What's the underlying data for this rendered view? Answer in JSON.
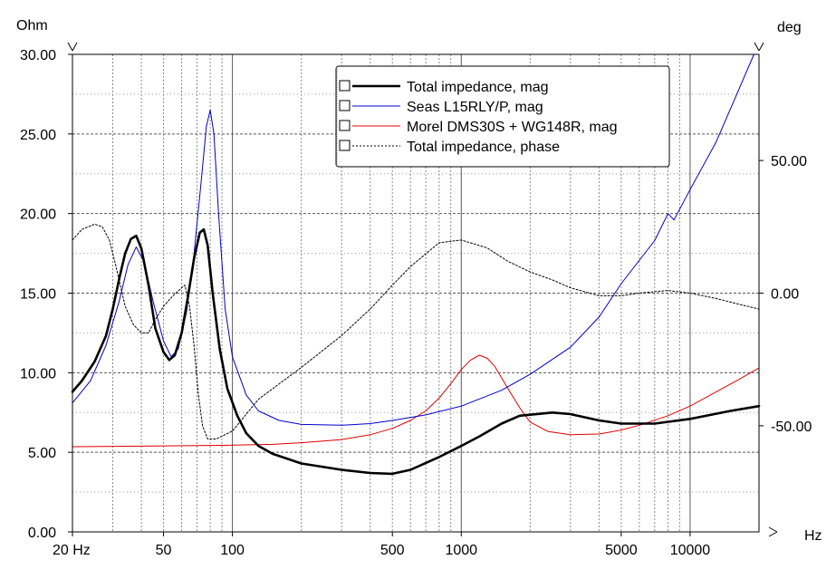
{
  "chart_data": {
    "type": "line",
    "y_left_unit": "Ohm",
    "y_right_unit": "deg",
    "x_unit": "Hz",
    "x_scale": "log",
    "xlim": [
      20,
      20000
    ],
    "ylim_left": [
      0,
      30
    ],
    "ylim_right": [
      -90,
      90
    ],
    "grid": true,
    "legend_position": "top-right",
    "x_ticks": [
      {
        "value": 20,
        "label": "20 Hz"
      },
      {
        "value": 50,
        "label": "50"
      },
      {
        "value": 100,
        "label": "100"
      },
      {
        "value": 500,
        "label": "500"
      },
      {
        "value": 1000,
        "label": "1000"
      },
      {
        "value": 5000,
        "label": "5000"
      },
      {
        "value": 10000,
        "label": "10000"
      }
    ],
    "y_left_ticks": [
      {
        "value": 0,
        "label": "0.00"
      },
      {
        "value": 5,
        "label": "5.00"
      },
      {
        "value": 10,
        "label": "10.00"
      },
      {
        "value": 15,
        "label": "15.00"
      },
      {
        "value": 20,
        "label": "20.00"
      },
      {
        "value": 25,
        "label": "25.00"
      },
      {
        "value": 30,
        "label": "30.00"
      }
    ],
    "y_right_ticks": [
      {
        "value": -50,
        "label": "-50.00"
      },
      {
        "value": 0,
        "label": "0.00"
      },
      {
        "value": 50,
        "label": "50.00"
      }
    ],
    "series": [
      {
        "name": "Total impedance, mag",
        "color": "#000000",
        "style": "solid-thick",
        "axis": "left",
        "points": [
          [
            20,
            8.8
          ],
          [
            22,
            9.5
          ],
          [
            25,
            10.7
          ],
          [
            28,
            12.3
          ],
          [
            30,
            14.0
          ],
          [
            32,
            15.9
          ],
          [
            34,
            17.5
          ],
          [
            36,
            18.4
          ],
          [
            38,
            18.6
          ],
          [
            40,
            17.8
          ],
          [
            43,
            15.5
          ],
          [
            46,
            12.8
          ],
          [
            50,
            11.3
          ],
          [
            53,
            10.8
          ],
          [
            56,
            11.1
          ],
          [
            60,
            12.5
          ],
          [
            64,
            14.8
          ],
          [
            68,
            17.2
          ],
          [
            72,
            18.8
          ],
          [
            75,
            19.0
          ],
          [
            78,
            18.0
          ],
          [
            82,
            15.0
          ],
          [
            88,
            11.5
          ],
          [
            95,
            9.0
          ],
          [
            105,
            7.3
          ],
          [
            115,
            6.2
          ],
          [
            130,
            5.4
          ],
          [
            150,
            4.9
          ],
          [
            200,
            4.3
          ],
          [
            300,
            3.9
          ],
          [
            400,
            3.7
          ],
          [
            500,
            3.65
          ],
          [
            600,
            3.9
          ],
          [
            800,
            4.7
          ],
          [
            1000,
            5.4
          ],
          [
            1200,
            6.0
          ],
          [
            1500,
            6.8
          ],
          [
            1800,
            7.3
          ],
          [
            2500,
            7.5
          ],
          [
            3000,
            7.4
          ],
          [
            4000,
            7.0
          ],
          [
            5000,
            6.8
          ],
          [
            7000,
            6.8
          ],
          [
            10000,
            7.1
          ],
          [
            15000,
            7.6
          ],
          [
            20000,
            7.9
          ]
        ]
      },
      {
        "name": "Seas L15RLY/P, mag",
        "color": "#0000cc",
        "style": "solid",
        "axis": "left",
        "points": [
          [
            20,
            8.1
          ],
          [
            24,
            9.5
          ],
          [
            28,
            11.7
          ],
          [
            32,
            14.5
          ],
          [
            35,
            16.8
          ],
          [
            38,
            17.9
          ],
          [
            41,
            17.0
          ],
          [
            45,
            14.5
          ],
          [
            50,
            12.0
          ],
          [
            54,
            11.0
          ],
          [
            58,
            11.5
          ],
          [
            63,
            13.8
          ],
          [
            68,
            17.5
          ],
          [
            73,
            22.0
          ],
          [
            77,
            25.5
          ],
          [
            80,
            26.5
          ],
          [
            83,
            25.0
          ],
          [
            87,
            20.0
          ],
          [
            93,
            14.0
          ],
          [
            100,
            11.0
          ],
          [
            115,
            8.6
          ],
          [
            130,
            7.6
          ],
          [
            160,
            7.0
          ],
          [
            200,
            6.75
          ],
          [
            300,
            6.7
          ],
          [
            400,
            6.8
          ],
          [
            500,
            7.0
          ],
          [
            700,
            7.35
          ],
          [
            1000,
            7.9
          ],
          [
            1500,
            8.9
          ],
          [
            2000,
            9.9
          ],
          [
            3000,
            11.6
          ],
          [
            4000,
            13.5
          ],
          [
            5000,
            15.6
          ],
          [
            7000,
            18.3
          ],
          [
            8000,
            20.0
          ],
          [
            8500,
            19.6
          ],
          [
            10000,
            21.5
          ],
          [
            13000,
            24.5
          ],
          [
            16000,
            27.5
          ],
          [
            19000,
            30.0
          ]
        ]
      },
      {
        "name": "Morel DMS30S + WG148R, mag",
        "color": "#e00000",
        "style": "solid",
        "axis": "left",
        "points": [
          [
            20,
            5.35
          ],
          [
            50,
            5.4
          ],
          [
            100,
            5.45
          ],
          [
            150,
            5.5
          ],
          [
            200,
            5.6
          ],
          [
            300,
            5.8
          ],
          [
            400,
            6.1
          ],
          [
            500,
            6.5
          ],
          [
            600,
            7.0
          ],
          [
            700,
            7.6
          ],
          [
            800,
            8.4
          ],
          [
            900,
            9.3
          ],
          [
            1000,
            10.2
          ],
          [
            1100,
            10.8
          ],
          [
            1200,
            11.1
          ],
          [
            1300,
            10.9
          ],
          [
            1400,
            10.4
          ],
          [
            1600,
            9.0
          ],
          [
            1800,
            7.8
          ],
          [
            2000,
            6.9
          ],
          [
            2400,
            6.3
          ],
          [
            3000,
            6.1
          ],
          [
            4000,
            6.15
          ],
          [
            5000,
            6.4
          ],
          [
            6000,
            6.7
          ],
          [
            8000,
            7.3
          ],
          [
            10000,
            7.9
          ],
          [
            13000,
            8.8
          ],
          [
            16000,
            9.5
          ],
          [
            20000,
            10.3
          ]
        ]
      },
      {
        "name": "Total impedance, phase",
        "color": "#000000",
        "style": "dotted",
        "axis": "right",
        "points": [
          [
            20,
            20
          ],
          [
            22,
            24
          ],
          [
            25,
            26
          ],
          [
            27,
            25
          ],
          [
            29,
            20
          ],
          [
            31,
            10
          ],
          [
            34,
            -5
          ],
          [
            37,
            -12
          ],
          [
            40,
            -15
          ],
          [
            43,
            -15
          ],
          [
            46,
            -10
          ],
          [
            50,
            -5
          ],
          [
            55,
            -1
          ],
          [
            60,
            2
          ],
          [
            62,
            3
          ],
          [
            65,
            -5
          ],
          [
            68,
            -20
          ],
          [
            71,
            -38
          ],
          [
            74,
            -50
          ],
          [
            78,
            -55
          ],
          [
            85,
            -55
          ],
          [
            100,
            -52
          ],
          [
            130,
            -40
          ],
          [
            200,
            -28
          ],
          [
            300,
            -16
          ],
          [
            400,
            -6
          ],
          [
            500,
            3
          ],
          [
            600,
            10
          ],
          [
            800,
            19
          ],
          [
            1000,
            20
          ],
          [
            1300,
            17
          ],
          [
            1600,
            12
          ],
          [
            2000,
            8
          ],
          [
            2500,
            5
          ],
          [
            3000,
            2
          ],
          [
            4000,
            -1
          ],
          [
            5000,
            -1
          ],
          [
            6000,
            0
          ],
          [
            8000,
            1
          ],
          [
            10000,
            0
          ],
          [
            13000,
            -2
          ],
          [
            16000,
            -4
          ],
          [
            20000,
            -6
          ]
        ]
      }
    ]
  }
}
